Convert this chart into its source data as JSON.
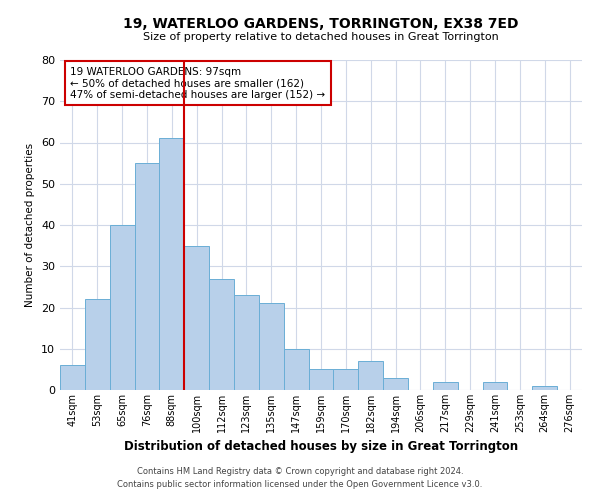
{
  "title": "19, WATERLOO GARDENS, TORRINGTON, EX38 7ED",
  "subtitle": "Size of property relative to detached houses in Great Torrington",
  "xlabel": "Distribution of detached houses by size in Great Torrington",
  "ylabel": "Number of detached properties",
  "bar_labels": [
    "41sqm",
    "53sqm",
    "65sqm",
    "76sqm",
    "88sqm",
    "100sqm",
    "112sqm",
    "123sqm",
    "135sqm",
    "147sqm",
    "159sqm",
    "170sqm",
    "182sqm",
    "194sqm",
    "206sqm",
    "217sqm",
    "229sqm",
    "241sqm",
    "253sqm",
    "264sqm",
    "276sqm"
  ],
  "bar_values": [
    6,
    22,
    40,
    55,
    61,
    35,
    27,
    23,
    21,
    10,
    5,
    5,
    7,
    3,
    0,
    2,
    0,
    2,
    0,
    1,
    0
  ],
  "bar_color": "#b8d0ea",
  "bar_edgecolor": "#6aaed6",
  "ylim": [
    0,
    80
  ],
  "yticks": [
    0,
    10,
    20,
    30,
    40,
    50,
    60,
    70,
    80
  ],
  "vline_color": "#cc0000",
  "annotation_title": "19 WATERLOO GARDENS: 97sqm",
  "annotation_line1": "← 50% of detached houses are smaller (162)",
  "annotation_line2": "47% of semi-detached houses are larger (152) →",
  "annotation_box_edgecolor": "#cc0000",
  "footer_line1": "Contains HM Land Registry data © Crown copyright and database right 2024.",
  "footer_line2": "Contains public sector information licensed under the Open Government Licence v3.0.",
  "background_color": "#ffffff",
  "grid_color": "#d0d8e8"
}
